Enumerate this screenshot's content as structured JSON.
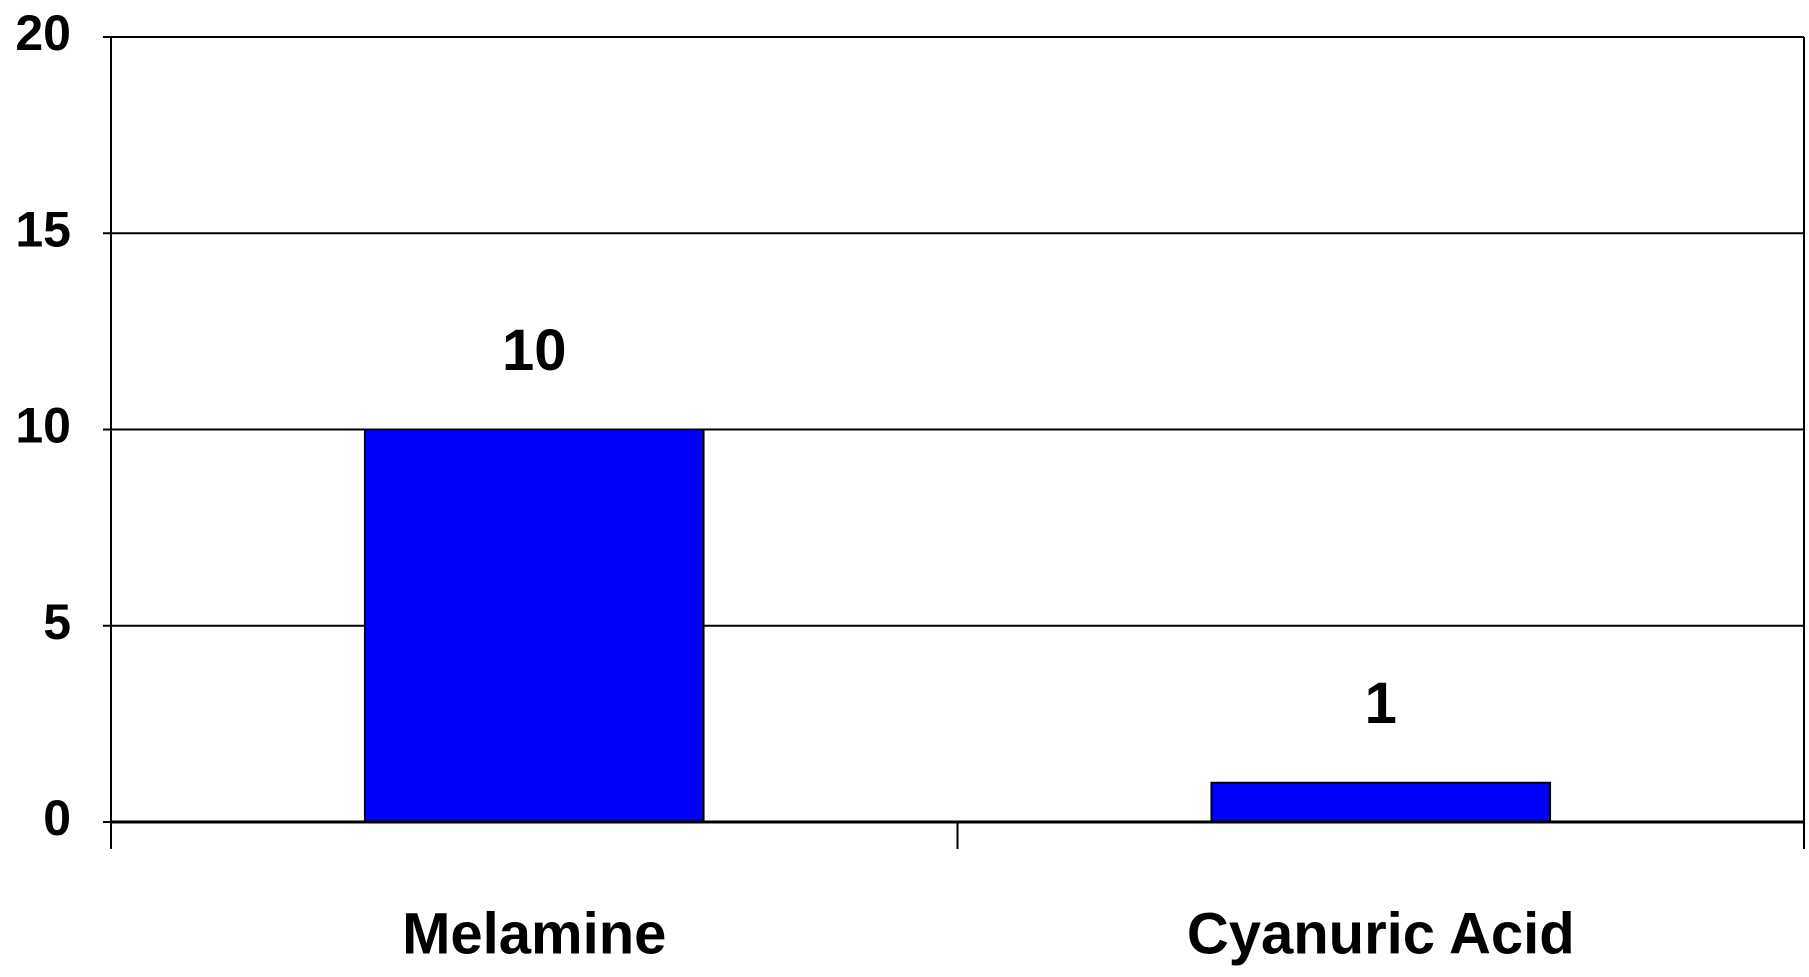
{
  "chart_data": {
    "type": "bar",
    "categories": [
      "Melamine",
      "Cyanuric Acid"
    ],
    "values": [
      10,
      1
    ],
    "color": "#0000ff",
    "ylim": [
      0,
      20
    ],
    "yticks": [
      0,
      5,
      10,
      15,
      20
    ],
    "grid": true
  }
}
